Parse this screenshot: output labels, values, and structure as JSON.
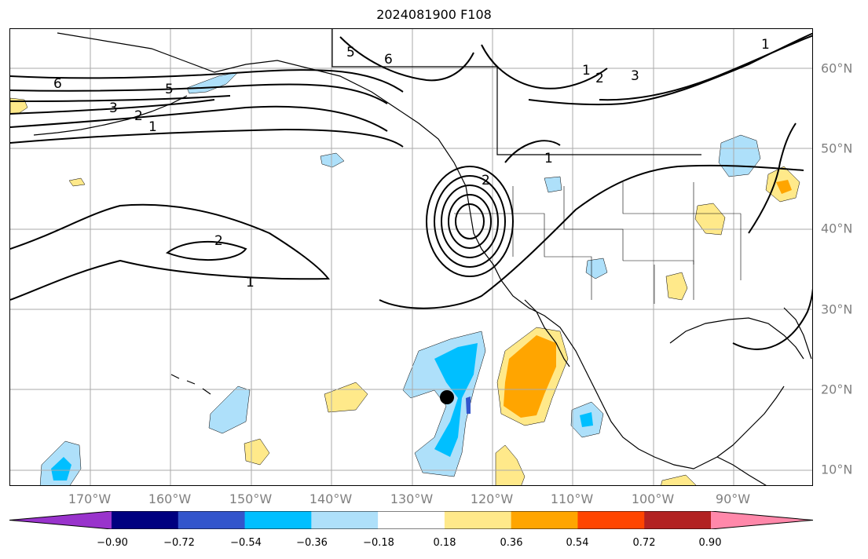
{
  "title": "2024081900 F108",
  "lat_labels": [
    "60°N",
    "50°N",
    "40°N",
    "30°N",
    "20°N",
    "10°N"
  ],
  "lon_labels": [
    "170°W",
    "160°W",
    "150°W",
    "140°W",
    "130°W",
    "120°W",
    "110°W",
    "100°W",
    "90°W"
  ],
  "contour_labels": [
    "6",
    "5",
    "3",
    "2",
    "1",
    "2",
    "1",
    "5",
    "6",
    "1",
    "2",
    "3",
    "1",
    "1",
    "2"
  ],
  "colorbar": {
    "colors": [
      "#9933cc",
      "#000080",
      "#3355cc",
      "#00bfff",
      "#aee0fa",
      "#ffffff",
      "#ffe98a",
      "#ffa500",
      "#ff4500",
      "#b22222",
      "#ff88aa"
    ],
    "tick_labels": [
      "−0.90",
      "−0.72",
      "−0.54",
      "−0.36",
      "−0.18",
      "0.18",
      "0.36",
      "0.54",
      "0.72",
      "0.90"
    ]
  },
  "marker": {
    "type": "black-dot",
    "lat": 19.0,
    "lon": -126.0
  },
  "map_extent": {
    "lon_min": -180,
    "lon_max": -80,
    "lat_min": 8,
    "lat_max": 65
  }
}
